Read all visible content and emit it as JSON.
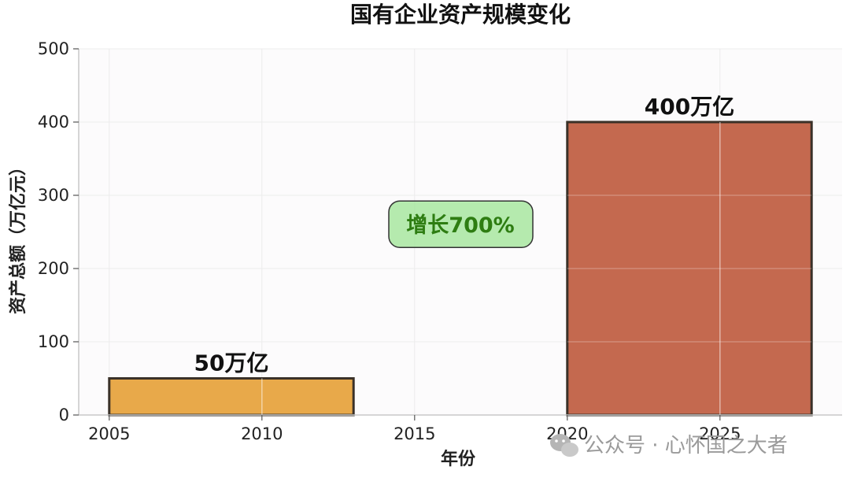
{
  "chart_data": {
    "type": "bar",
    "title": "国有企业资产规模变化",
    "xlabel": "年份",
    "ylabel": "资产总额（万亿元）",
    "xlim": [
      2004,
      2029
    ],
    "ylim": [
      0,
      500
    ],
    "xticks": [
      2005,
      2010,
      2015,
      2020,
      2025
    ],
    "yticks": [
      0,
      100,
      200,
      300,
      400,
      500
    ],
    "grid": true,
    "bars": [
      {
        "x_start": 2005,
        "x_end": 2013,
        "value": 50,
        "label": "50万亿",
        "color": "#e8a94a"
      },
      {
        "x_start": 2020,
        "x_end": 2028,
        "value": 400,
        "label": "400万亿",
        "color": "#c4694f"
      }
    ],
    "annotation": {
      "text": "增长700%",
      "x": 2016.5,
      "y": 260,
      "color": "#2e7d12",
      "background": "#a8e6a0"
    }
  },
  "watermark": {
    "text": "公众号 · 心怀国之大者",
    "icon": "wechat-icon"
  }
}
